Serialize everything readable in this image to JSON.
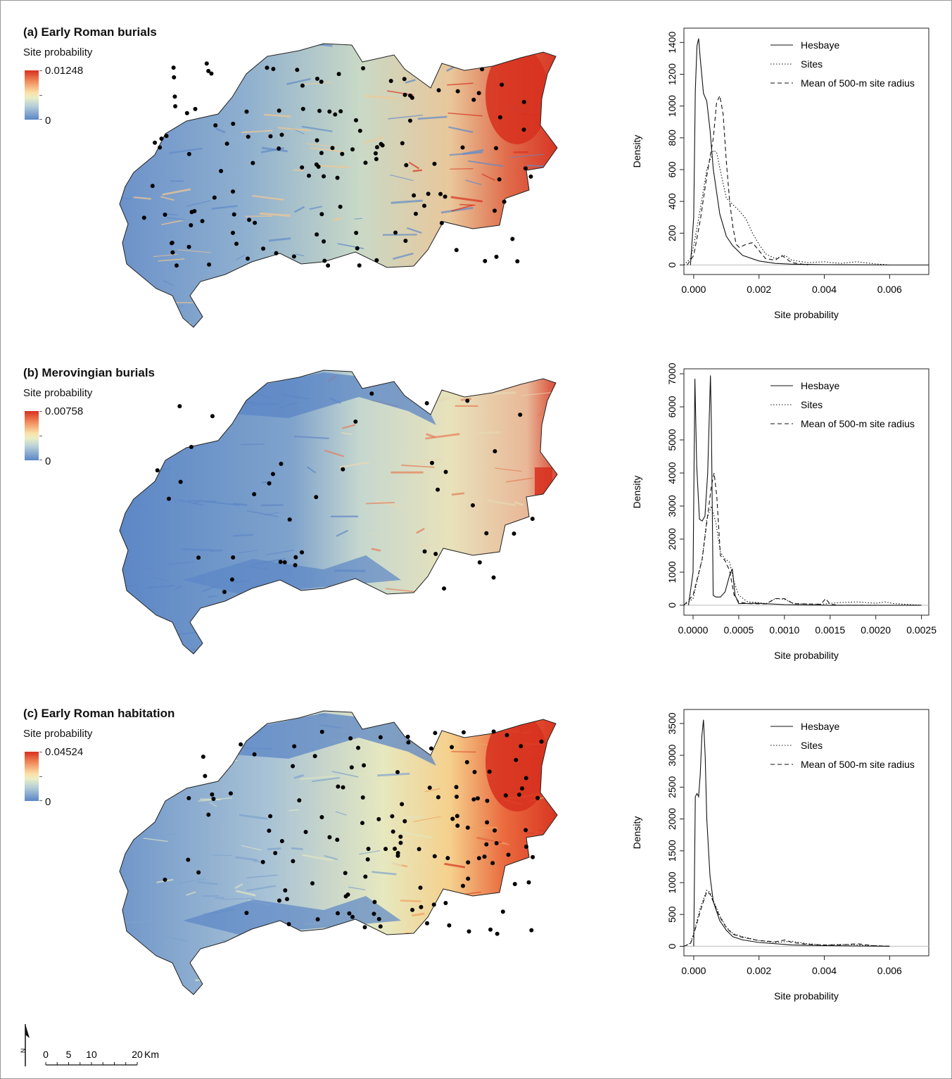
{
  "panels": [
    {
      "title": "(a) Early Roman burials",
      "legend": {
        "label": "Site probability",
        "max": "0.01248",
        "min": "0"
      },
      "map_style": "a",
      "chart_data": {
        "type": "line",
        "xlabel": "Site probability",
        "ylabel": "Density",
        "xlim": [
          -0.0003,
          0.0072
        ],
        "ylim": [
          -60,
          1490
        ],
        "xticks": [
          "0.000",
          "0.002",
          "0.004",
          "0.006"
        ],
        "xtick_values": [
          0,
          0.002,
          0.004,
          0.006
        ],
        "yticks": [
          "0",
          "200",
          "400",
          "600",
          "800",
          "1000",
          "1200",
          "1400"
        ],
        "ytick_values": [
          0,
          200,
          400,
          600,
          800,
          1000,
          1200,
          1400
        ],
        "legend": [
          "Hesbaye",
          "Sites",
          "Mean of 500-m site radius"
        ],
        "series": [
          {
            "name": "Hesbaye",
            "dash": "solid",
            "x": [
              -0.0001,
              0.0,
              5e-05,
              0.0001,
              0.00015,
              0.0002,
              0.0003,
              0.0004,
              0.0005,
              0.0006,
              0.0008,
              0.001,
              0.0012,
              0.0015,
              0.002,
              0.0025,
              0.003,
              0.004,
              0.005,
              0.006,
              0.0072
            ],
            "y": [
              0,
              300,
              1100,
              1380,
              1425,
              1300,
              1080,
              1030,
              850,
              600,
              320,
              180,
              120,
              60,
              25,
              10,
              5,
              2,
              1,
              0,
              0
            ]
          },
          {
            "name": "Sites",
            "dash": "dotted",
            "x": [
              -0.0003,
              -0.0001,
              0.0,
              0.0002,
              0.0004,
              0.0006,
              0.0007,
              0.0008,
              0.001,
              0.0012,
              0.0014,
              0.0016,
              0.0018,
              0.002,
              0.0022,
              0.0025,
              0.0028,
              0.003,
              0.0035,
              0.004,
              0.0045,
              0.005,
              0.0055,
              0.006
            ],
            "y": [
              0,
              40,
              120,
              350,
              600,
              720,
              710,
              610,
              420,
              380,
              340,
              290,
              200,
              130,
              70,
              40,
              60,
              30,
              15,
              20,
              10,
              20,
              8,
              0
            ]
          },
          {
            "name": "Mean of 500-m site radius",
            "dash": "dashed",
            "x": [
              -0.0002,
              0.0,
              0.0002,
              0.0004,
              0.0006,
              0.0007,
              0.0008,
              0.0009,
              0.001,
              0.0011,
              0.0012,
              0.0013,
              0.0014,
              0.0016,
              0.0018,
              0.002,
              0.0022,
              0.0025,
              0.0027,
              0.003,
              0.0035
            ],
            "y": [
              0,
              60,
              280,
              560,
              800,
              1020,
              1065,
              950,
              650,
              400,
              240,
              130,
              110,
              130,
              140,
              90,
              40,
              30,
              60,
              15,
              0
            ]
          }
        ]
      }
    },
    {
      "title": "(b) Merovingian burials",
      "legend": {
        "label": "Site probability",
        "max": "0.00758",
        "min": "0"
      },
      "map_style": "b",
      "chart_data": {
        "type": "line",
        "xlabel": "Site probability",
        "ylabel": "Density",
        "xlim": [
          -0.0001,
          0.00258
        ],
        "ylim": [
          -300,
          7150
        ],
        "xticks": [
          "0.0000",
          "0.0005",
          "0.0010",
          "0.0015",
          "0.0020",
          "0.0025"
        ],
        "xtick_values": [
          0,
          0.0005,
          0.001,
          0.0015,
          0.002,
          0.0025
        ],
        "yticks": [
          "0",
          "1000",
          "2000",
          "3000",
          "4000",
          "5000",
          "6000",
          "7000"
        ],
        "ytick_values": [
          0,
          1000,
          2000,
          3000,
          4000,
          5000,
          6000,
          7000
        ],
        "legend": [
          "Hesbaye",
          "Sites",
          "Mean of 500-m site radius"
        ],
        "series": [
          {
            "name": "Hesbaye",
            "dash": "solid",
            "x": [
              -5e-05,
              0.0,
              2e-05,
              4e-05,
              7e-05,
              0.0001,
              0.00013,
              0.00016,
              0.00019,
              0.0002,
              0.00022,
              0.00025,
              0.0003,
              0.00035,
              0.0004,
              0.00043,
              0.00046,
              0.0005,
              0.0007,
              0.001,
              0.0015,
              0.002,
              0.0025
            ],
            "y": [
              0,
              1000,
              6850,
              4200,
              2600,
              2550,
              2700,
              4000,
              6950,
              5500,
              300,
              250,
              250,
              400,
              900,
              1100,
              300,
              50,
              60,
              20,
              0,
              0,
              0
            ]
          },
          {
            "name": "Sites",
            "dash": "dotted",
            "x": [
              -0.0001,
              0.0,
              0.0001,
              0.00015,
              0.0002,
              0.00025,
              0.0003,
              0.00035,
              0.0004,
              0.00045,
              0.0005,
              0.0006,
              0.0007,
              0.0008,
              0.0009,
              0.001,
              0.0011,
              0.0014,
              0.0016,
              0.0018,
              0.002,
              0.0021,
              0.0022,
              0.0025
            ],
            "y": [
              0,
              200,
              1400,
              2600,
              3000,
              2500,
              1600,
              1400,
              1300,
              700,
              300,
              100,
              80,
              50,
              200,
              180,
              50,
              30,
              80,
              100,
              60,
              100,
              50,
              0
            ]
          },
          {
            "name": "Mean of 500-m site radius",
            "dash": "dashed",
            "x": [
              -0.0001,
              0.0,
              0.0001,
              0.00015,
              0.0002,
              0.00023,
              0.00026,
              0.0003,
              0.00035,
              0.0004,
              0.00045,
              0.0005,
              0.0006,
              0.0008,
              0.0009,
              0.001,
              0.0011,
              0.0014,
              0.00145,
              0.0015,
              0.0016,
              0.002
            ],
            "y": [
              0,
              300,
              1400,
              2500,
              3600,
              4000,
              3300,
              1500,
              1350,
              1050,
              300,
              100,
              50,
              40,
              200,
              200,
              50,
              30,
              200,
              30,
              0,
              0
            ]
          }
        ]
      }
    },
    {
      "title": "(c) Early Roman habitation",
      "legend": {
        "label": "Site probability",
        "max": "0.04524",
        "min": "0"
      },
      "map_style": "c",
      "chart_data": {
        "type": "line",
        "xlabel": "Site probability",
        "ylabel": "Density",
        "xlim": [
          -0.0003,
          0.0072
        ],
        "ylim": [
          -150,
          3720
        ],
        "xticks": [
          "0.000",
          "0.002",
          "0.004",
          "0.006"
        ],
        "xtick_values": [
          0,
          0.002,
          0.004,
          0.006
        ],
        "yticks": [
          "0",
          "500",
          "1000",
          "1500",
          "2000",
          "2500",
          "3000",
          "3500"
        ],
        "ytick_values": [
          0,
          500,
          1000,
          1500,
          2000,
          2500,
          3000,
          3500
        ],
        "legend": [
          "Hesbaye",
          "Sites",
          "Mean of 500-m site radius"
        ],
        "series": [
          {
            "name": "Hesbaye",
            "dash": "solid",
            "x": [
              0.0,
              5e-05,
              0.0001,
              0.00015,
              0.0002,
              0.00025,
              0.0003,
              0.00035,
              0.0004,
              0.0005,
              0.0006,
              0.0008,
              0.001,
              0.0012,
              0.0015,
              0.002,
              0.003,
              0.004,
              0.005,
              0.006
            ],
            "y": [
              0,
              2350,
              2400,
              2350,
              2700,
              3300,
              3560,
              3000,
              2000,
              1100,
              700,
              400,
              250,
              150,
              100,
              60,
              20,
              10,
              5,
              0
            ]
          },
          {
            "name": "Sites",
            "dash": "dotted",
            "x": [
              -0.0003,
              -0.0001,
              0.0,
              0.0002,
              0.0004,
              0.0005,
              0.0006,
              0.0008,
              0.001,
              0.0012,
              0.0015,
              0.002,
              0.0025,
              0.003,
              0.0035,
              0.004,
              0.0045,
              0.005,
              0.0055,
              0.006
            ],
            "y": [
              0,
              50,
              200,
              600,
              880,
              850,
              720,
              480,
              300,
              200,
              150,
              90,
              60,
              80,
              40,
              20,
              30,
              20,
              10,
              0
            ]
          },
          {
            "name": "Mean of 500-m site radius",
            "dash": "dashed",
            "x": [
              -0.0003,
              -0.0001,
              0.0,
              0.0002,
              0.0004,
              0.0005,
              0.0006,
              0.0008,
              0.001,
              0.0012,
              0.0015,
              0.002,
              0.0025,
              0.0028,
              0.003,
              0.0035,
              0.004,
              0.0045,
              0.005,
              0.0055,
              0.006
            ],
            "y": [
              0,
              40,
              180,
              550,
              860,
              820,
              700,
              460,
              290,
              190,
              140,
              90,
              70,
              100,
              60,
              30,
              20,
              20,
              40,
              10,
              0
            ]
          }
        ]
      }
    }
  ],
  "scalebar": {
    "labels": [
      "0",
      "5",
      "10",
      "20"
    ],
    "unit": "Km"
  },
  "north_arrow": {
    "letter": "N"
  }
}
